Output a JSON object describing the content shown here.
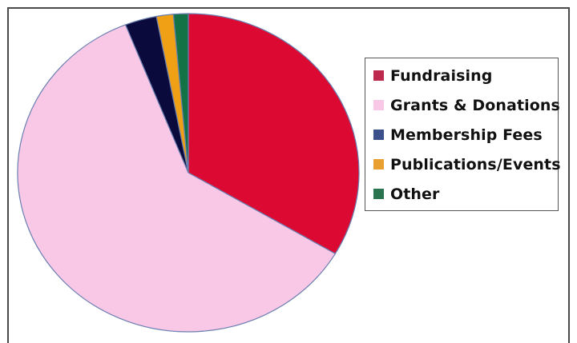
{
  "chart_data": {
    "type": "pie",
    "title": "",
    "start_angle_deg": 0,
    "direction": "clockwise",
    "legend_position": "right",
    "slices": [
      {
        "label": "Fundraising",
        "value": 33.5,
        "color": "#dc0a32",
        "swatch": "#be2a4e"
      },
      {
        "label": "Grants & Donations",
        "value": 60.5,
        "color": "#f8c8e6",
        "swatch": "#f8c8e6"
      },
      {
        "label": "Membership Fees",
        "value": 3.0,
        "color": "#0a0a3c",
        "swatch": "#3c508c"
      },
      {
        "label": "Publications/Events",
        "value": 1.6,
        "color": "#f0a014",
        "swatch": "#eaa030"
      },
      {
        "label": "Other",
        "value": 1.4,
        "color": "#147346",
        "swatch": "#2a7450"
      }
    ]
  }
}
